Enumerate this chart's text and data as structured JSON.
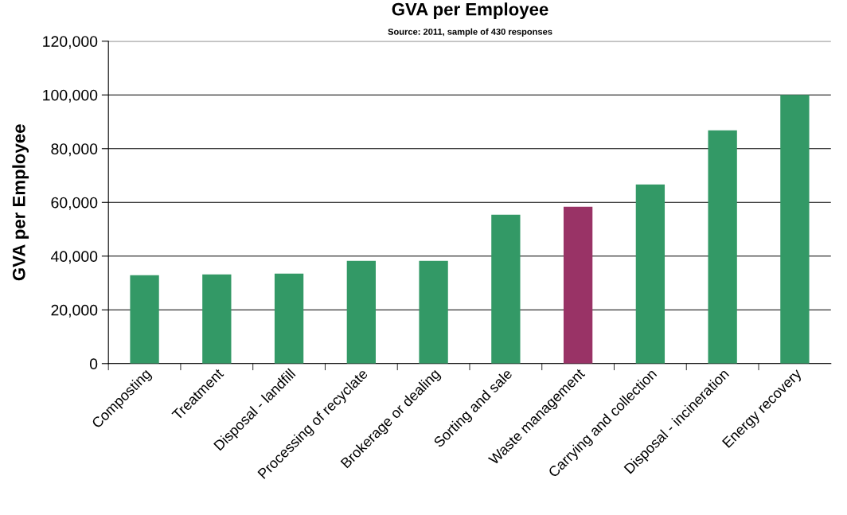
{
  "chart_data": {
    "type": "bar",
    "title": "GVA per Employee",
    "subtitle": "Source: 2011, sample of 430 responses",
    "ylabel": "GVA per Employee",
    "categories": [
      "Composting",
      "Treatment",
      "Disposal - landfill",
      "Processing of recyclate",
      "Brokerage or dealing",
      "Sorting and sale",
      "Waste management",
      "Carrying and collection",
      "Disposal - incineration",
      "Energy recovery"
    ],
    "values": [
      32900,
      33200,
      33500,
      38200,
      38200,
      55400,
      58400,
      66700,
      86800,
      100000
    ],
    "colors": [
      "#339966",
      "#339966",
      "#339966",
      "#339966",
      "#339966",
      "#339966",
      "#993366",
      "#339966",
      "#339966",
      "#339966"
    ],
    "ylim": [
      0,
      120000
    ],
    "yticks": [
      {
        "value": 0,
        "label": "0"
      },
      {
        "value": 20000,
        "label": "20,000"
      },
      {
        "value": 40000,
        "label": "40,000"
      },
      {
        "value": 60000,
        "label": "60,000"
      },
      {
        "value": 80000,
        "label": "80,000"
      },
      {
        "value": 100000,
        "label": "100,000"
      },
      {
        "value": 120000,
        "label": "120,000"
      }
    ],
    "grid": "y"
  }
}
